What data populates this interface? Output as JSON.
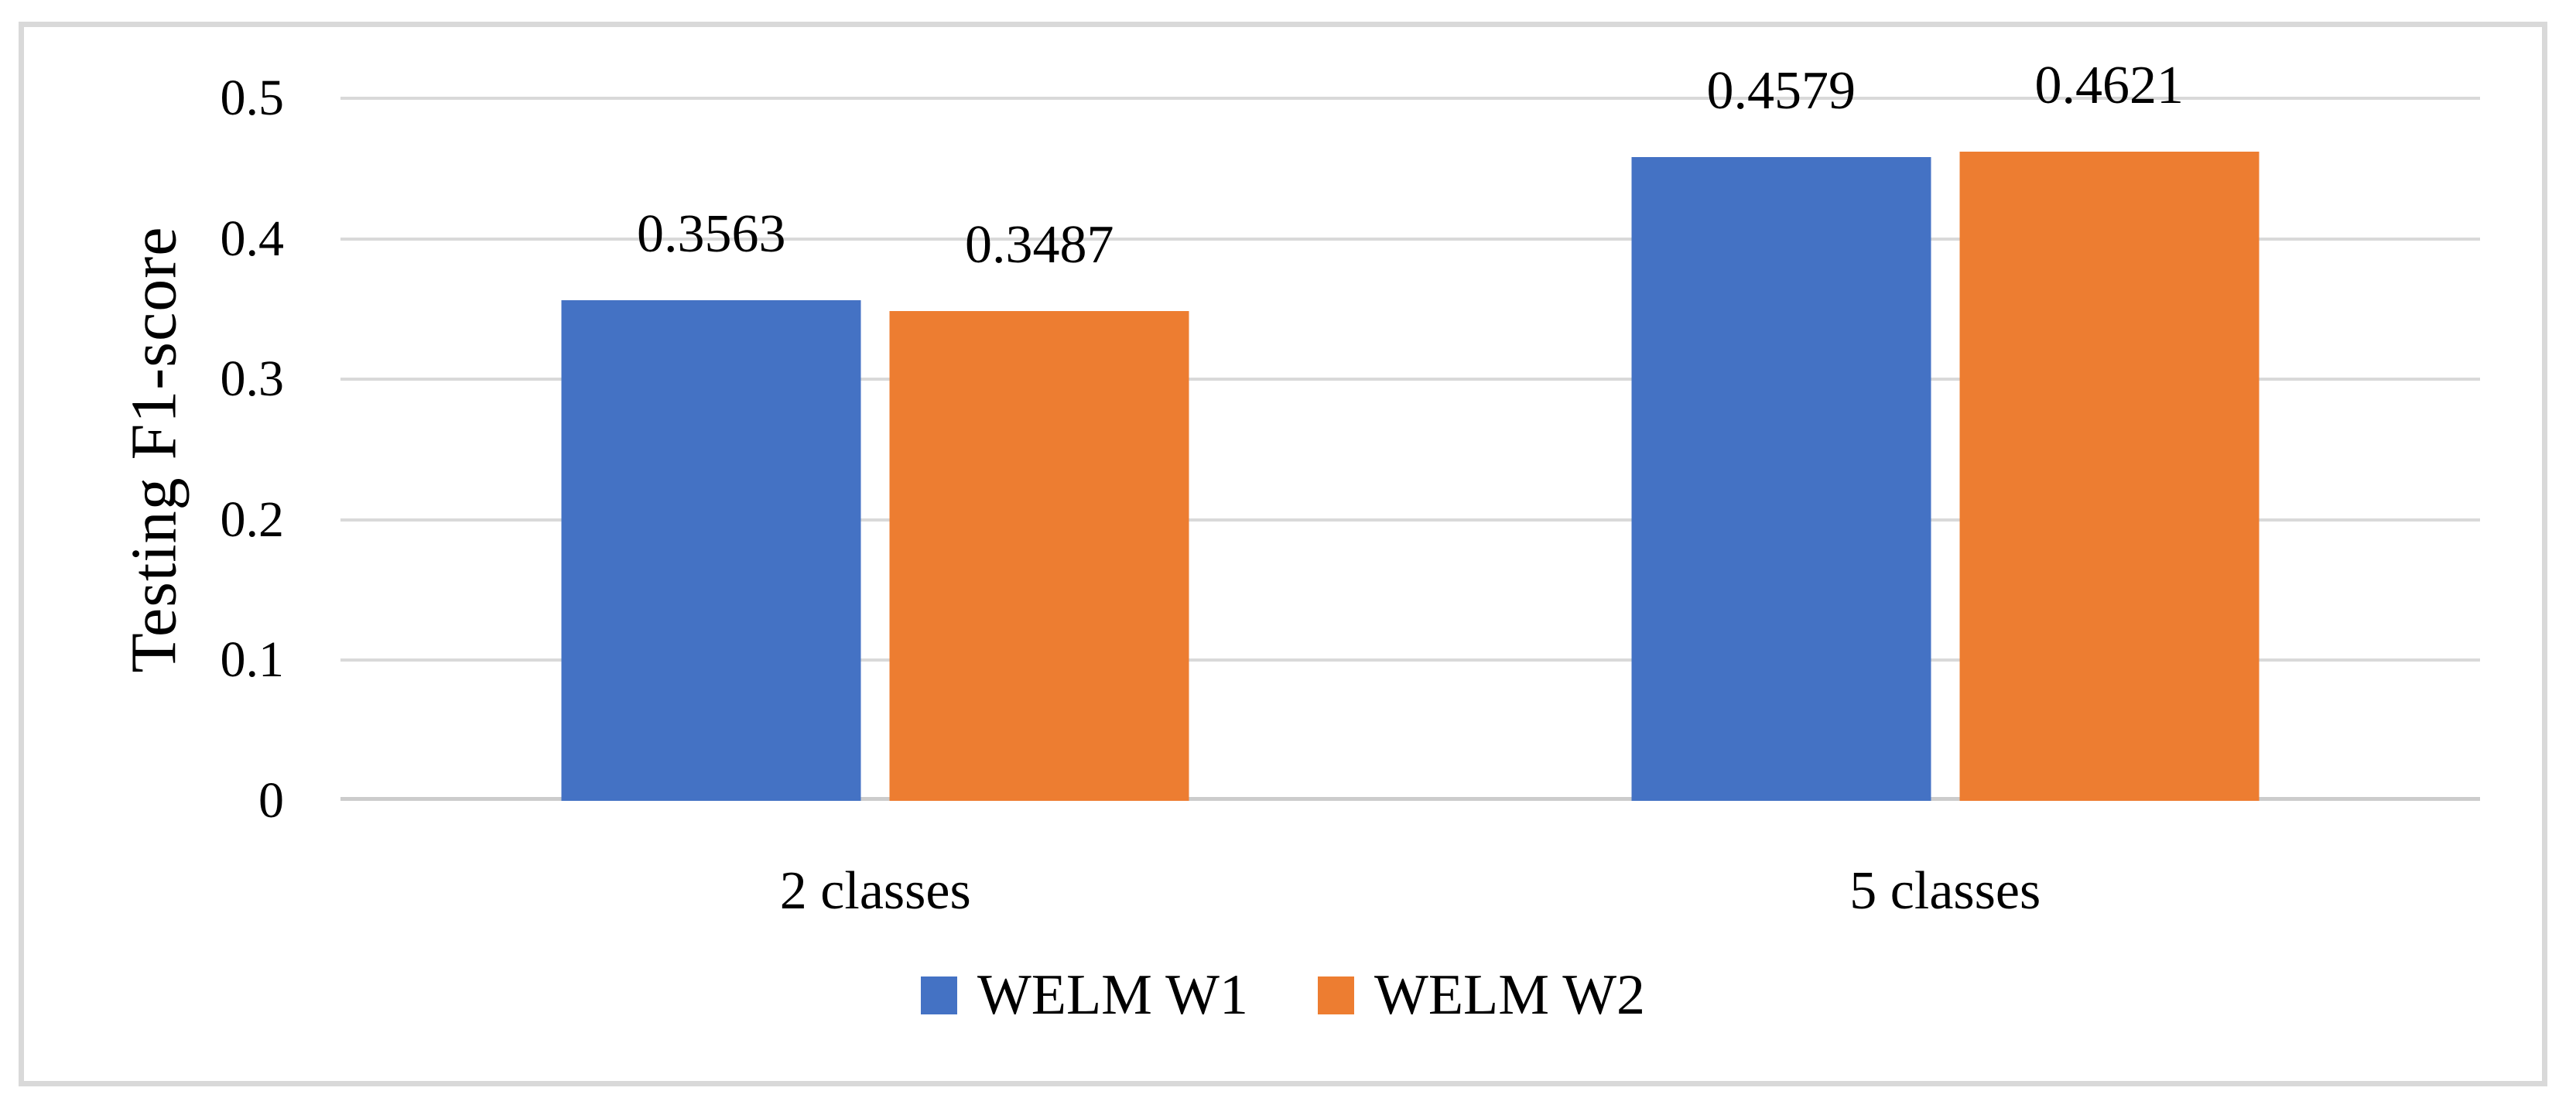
{
  "figure": {
    "background": "#ffffff",
    "border_color": "#d9d9d9",
    "gridline_color": "#d9d9d9"
  },
  "chart_data": {
    "type": "bar",
    "title": "",
    "xlabel": "",
    "ylabel": "Testing F1-score",
    "categories": [
      "2 classes",
      "5 classes"
    ],
    "series": [
      {
        "name": "WELM W1",
        "color": "#4472C4",
        "values": [
          0.3563,
          0.4579
        ],
        "labels": [
          "0.3563",
          "0.4579"
        ]
      },
      {
        "name": "WELM W2",
        "color": "#ED7D31",
        "values": [
          0.3487,
          0.4621
        ],
        "labels": [
          "0.3487",
          "0.4621"
        ]
      }
    ],
    "ylim": [
      0,
      0.5
    ],
    "yticks": [
      "0",
      "0.1",
      "0.2",
      "0.3",
      "0.4",
      "0.5"
    ],
    "ytick_values": [
      0,
      0.1,
      0.2,
      0.3,
      0.4,
      0.5
    ],
    "grid": "horizontal",
    "legend_position": "bottom",
    "legend": [
      "WELM W1",
      "WELM W2"
    ]
  }
}
